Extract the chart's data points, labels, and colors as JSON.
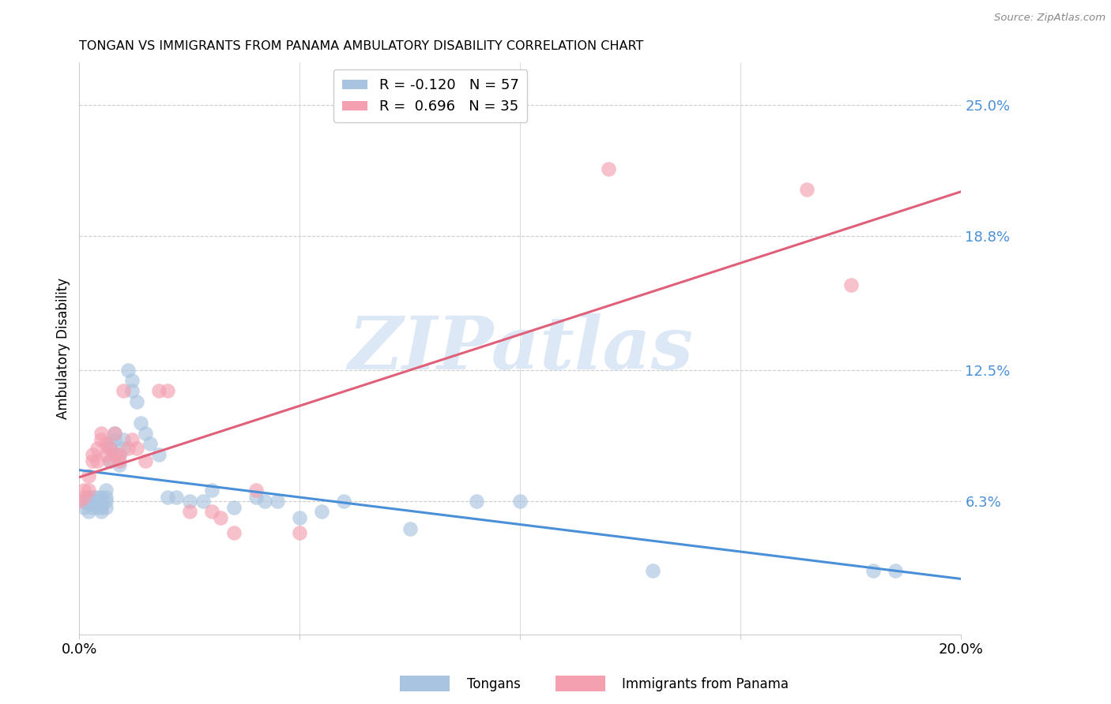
{
  "title": "TONGAN VS IMMIGRANTS FROM PANAMA AMBULATORY DISABILITY CORRELATION CHART",
  "source": "Source: ZipAtlas.com",
  "ylabel": "Ambulatory Disability",
  "ytick_values": [
    0.063,
    0.125,
    0.188,
    0.25
  ],
  "ytick_labels": [
    "6.3%",
    "12.5%",
    "18.8%",
    "25.0%"
  ],
  "xlim": [
    0.0,
    0.2
  ],
  "ylim": [
    0.0,
    0.27
  ],
  "legend_color1": "#a8c4e0",
  "legend_color2": "#f4a0b0",
  "line_color1": "#4a90d9",
  "line_color2": "#e0607a",
  "scatter_color1": "#a8c4e0",
  "scatter_color2": "#f4a0b0",
  "watermark": "ZIPatlas",
  "watermark_color": "#dce8f5",
  "R1": -0.12,
  "N1": 57,
  "R2": 0.696,
  "N2": 35,
  "tongans_x": [
    0.001,
    0.001,
    0.002,
    0.002,
    0.002,
    0.003,
    0.003,
    0.003,
    0.003,
    0.004,
    0.004,
    0.004,
    0.004,
    0.005,
    0.005,
    0.005,
    0.005,
    0.006,
    0.006,
    0.006,
    0.006,
    0.007,
    0.007,
    0.007,
    0.008,
    0.008,
    0.008,
    0.009,
    0.009,
    0.01,
    0.01,
    0.011,
    0.012,
    0.012,
    0.013,
    0.014,
    0.015,
    0.016,
    0.018,
    0.02,
    0.022,
    0.025,
    0.028,
    0.03,
    0.035,
    0.04,
    0.042,
    0.045,
    0.05,
    0.055,
    0.06,
    0.075,
    0.09,
    0.1,
    0.13,
    0.18,
    0.185
  ],
  "tongans_y": [
    0.063,
    0.06,
    0.058,
    0.062,
    0.065,
    0.063,
    0.06,
    0.063,
    0.065,
    0.06,
    0.062,
    0.065,
    0.063,
    0.058,
    0.06,
    0.062,
    0.065,
    0.06,
    0.063,
    0.065,
    0.068,
    0.082,
    0.088,
    0.09,
    0.085,
    0.092,
    0.095,
    0.08,
    0.085,
    0.088,
    0.092,
    0.125,
    0.115,
    0.12,
    0.11,
    0.1,
    0.095,
    0.09,
    0.085,
    0.065,
    0.065,
    0.063,
    0.063,
    0.068,
    0.06,
    0.065,
    0.063,
    0.063,
    0.055,
    0.058,
    0.063,
    0.05,
    0.063,
    0.063,
    0.03,
    0.03,
    0.03
  ],
  "panama_x": [
    0.0,
    0.001,
    0.001,
    0.002,
    0.002,
    0.003,
    0.003,
    0.004,
    0.004,
    0.005,
    0.005,
    0.006,
    0.006,
    0.007,
    0.007,
    0.008,
    0.008,
    0.009,
    0.009,
    0.01,
    0.011,
    0.012,
    0.013,
    0.015,
    0.018,
    0.02,
    0.025,
    0.03,
    0.032,
    0.035,
    0.04,
    0.05,
    0.12,
    0.165,
    0.175
  ],
  "panama_y": [
    0.063,
    0.065,
    0.068,
    0.068,
    0.075,
    0.082,
    0.085,
    0.082,
    0.088,
    0.092,
    0.095,
    0.085,
    0.09,
    0.082,
    0.088,
    0.085,
    0.095,
    0.085,
    0.082,
    0.115,
    0.088,
    0.092,
    0.088,
    0.082,
    0.115,
    0.115,
    0.058,
    0.058,
    0.055,
    0.048,
    0.068,
    0.048,
    0.22,
    0.21,
    0.165
  ]
}
